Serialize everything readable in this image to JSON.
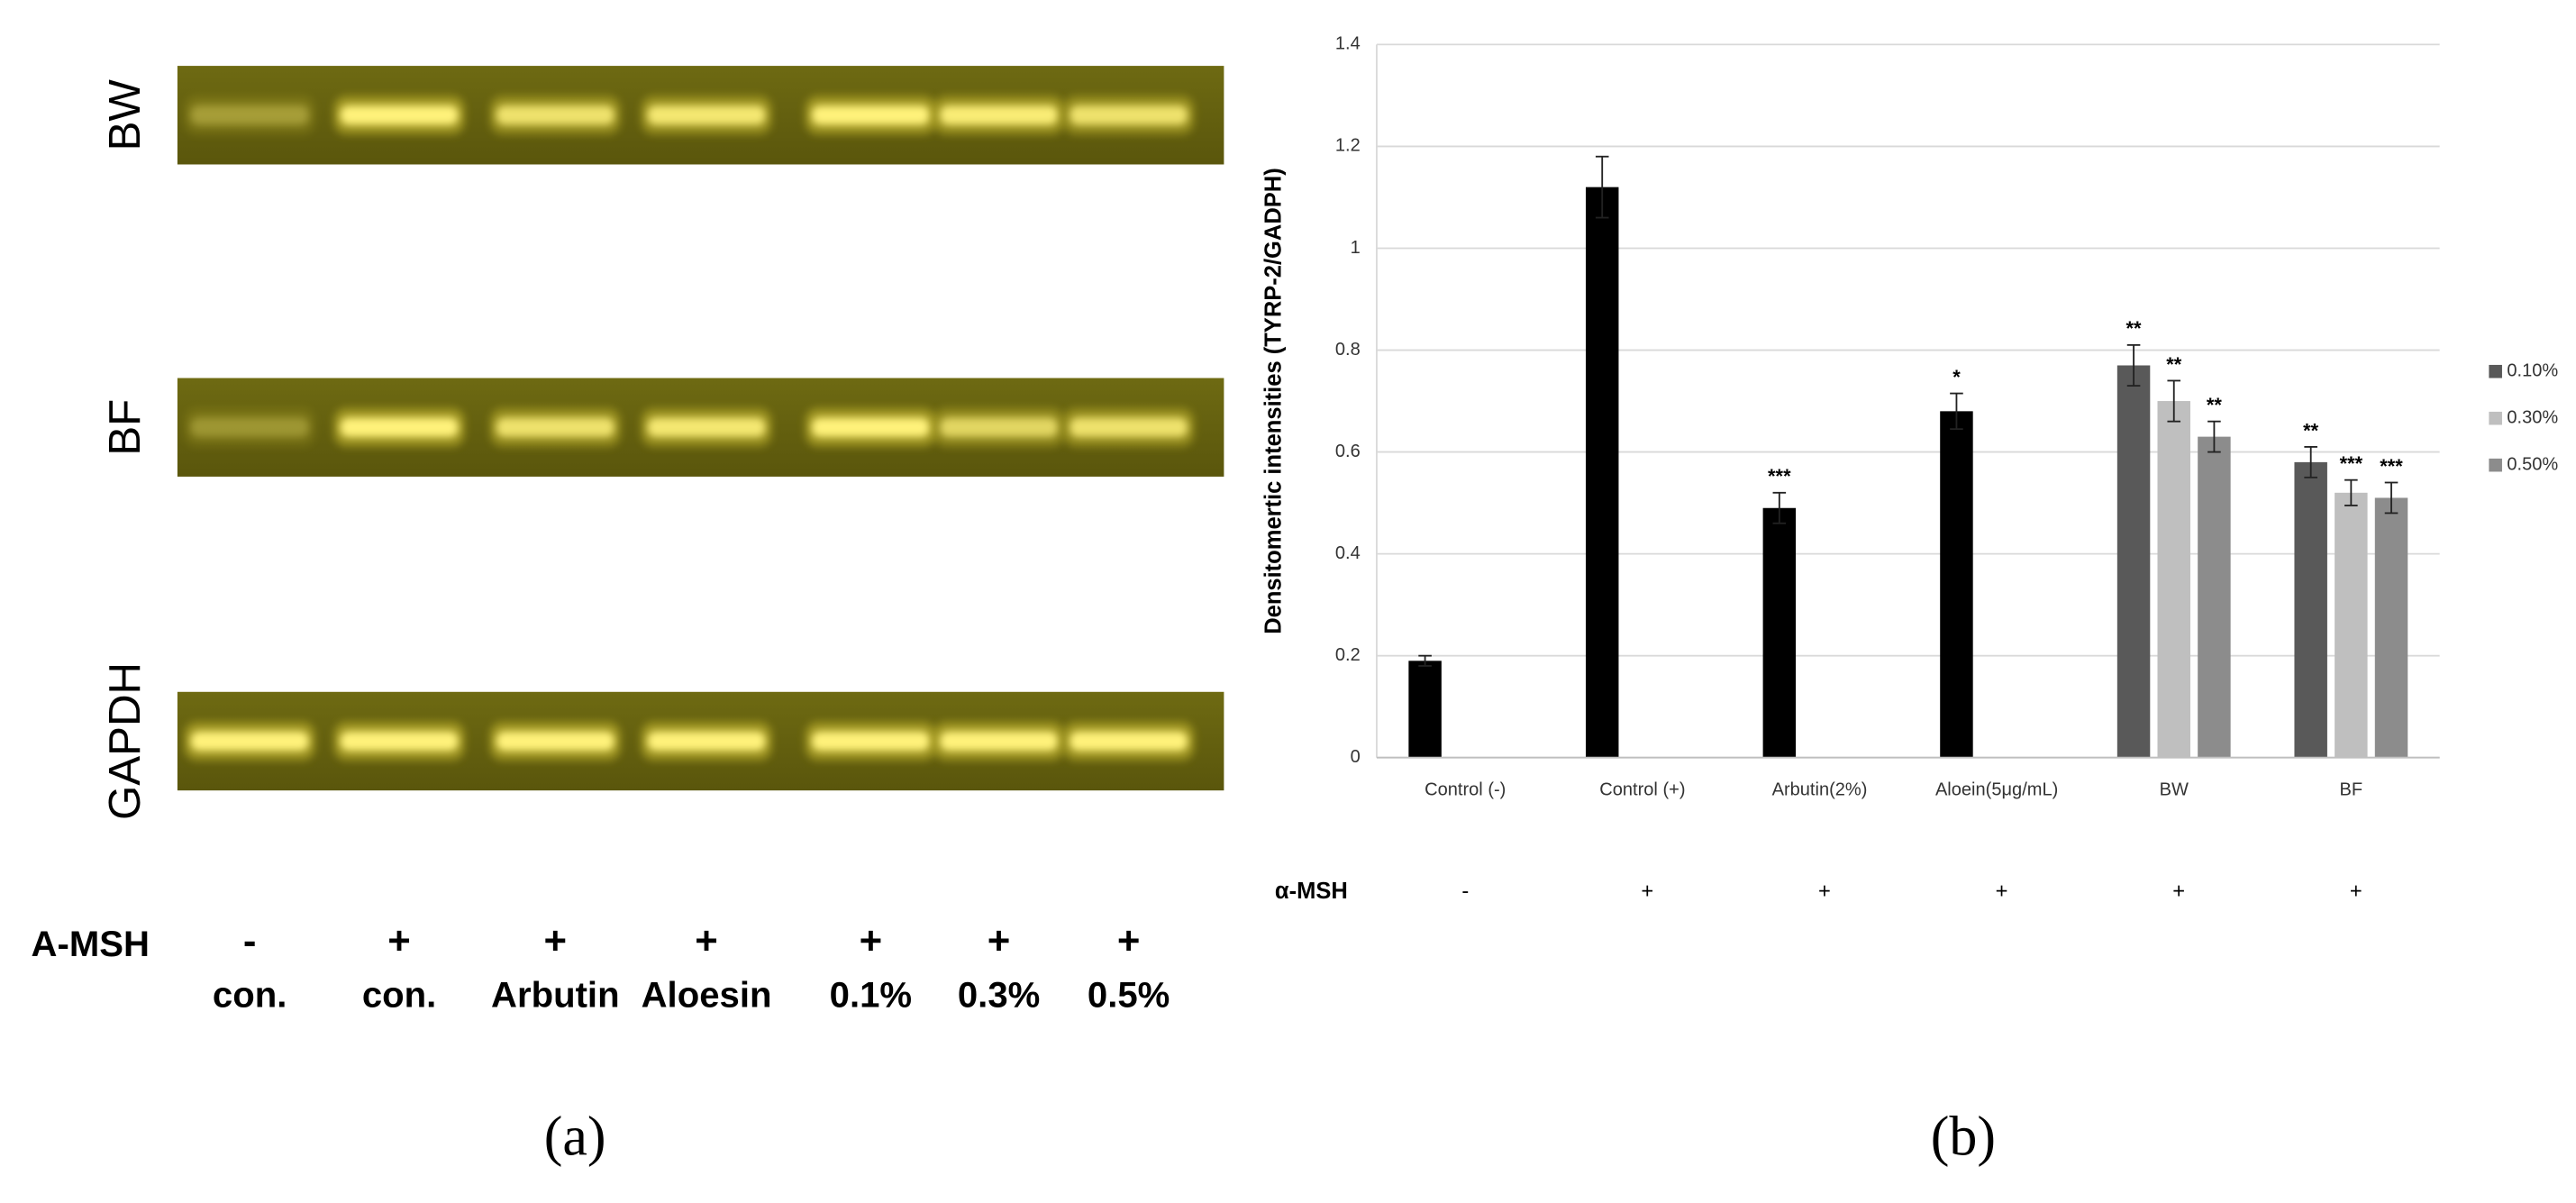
{
  "gel": {
    "rows": [
      "BW",
      "BF",
      "GAPDH"
    ],
    "treatment_label": "A-MSH",
    "treatment": [
      "-",
      "+",
      "+",
      "+",
      "+",
      "+",
      "+"
    ],
    "lanes": [
      "con.",
      "con.",
      "Arbutin",
      "Aloesin",
      "0.1%",
      "0.3%",
      "0.5%"
    ],
    "panel": "(a)"
  },
  "chart_data": {
    "type": "bar",
    "panel": "(b)",
    "y_label": "Densitomertic intensities (TYRP-2/GADPH)",
    "categories": [
      "Control (-)",
      "Control (+)",
      "Arbutin(2%)",
      "Aloein(5μg/mL)",
      "BW",
      "BF"
    ],
    "treatment_label": "α-MSH",
    "treatment": [
      "-",
      "+",
      "+",
      "+",
      "+",
      "+"
    ],
    "series": [
      {
        "color": "#000000",
        "values": [
          0.19,
          1.12,
          0.49,
          0.68,
          null,
          null
        ],
        "errors": [
          0.01,
          0.06,
          0.03,
          0.035,
          null,
          null
        ],
        "significance": [
          null,
          null,
          "***",
          "*",
          null,
          null
        ]
      },
      {
        "name": "0.10%",
        "color": "#595959",
        "values": [
          null,
          null,
          null,
          null,
          0.77,
          0.58
        ],
        "errors": [
          null,
          null,
          null,
          null,
          0.04,
          0.03
        ],
        "significance": [
          null,
          null,
          null,
          null,
          "**",
          "**"
        ]
      },
      {
        "name": "0.30%",
        "color": "#bfbfbf",
        "values": [
          null,
          null,
          null,
          null,
          0.7,
          0.52
        ],
        "errors": [
          null,
          null,
          null,
          null,
          0.04,
          0.025
        ],
        "significance": [
          null,
          null,
          null,
          null,
          "**",
          "***"
        ]
      },
      {
        "name": "0.50%",
        "color": "#8c8c8c",
        "values": [
          null,
          null,
          null,
          null,
          0.63,
          0.51
        ],
        "errors": [
          null,
          null,
          null,
          null,
          0.03,
          0.03
        ],
        "significance": [
          null,
          null,
          null,
          null,
          "**",
          "***"
        ]
      }
    ],
    "ylim": [
      0,
      1.4
    ],
    "yticks": [
      0,
      0.2,
      0.4,
      0.6,
      0.8,
      1,
      1.2,
      1.4
    ],
    "grid": true,
    "legend": "right"
  }
}
